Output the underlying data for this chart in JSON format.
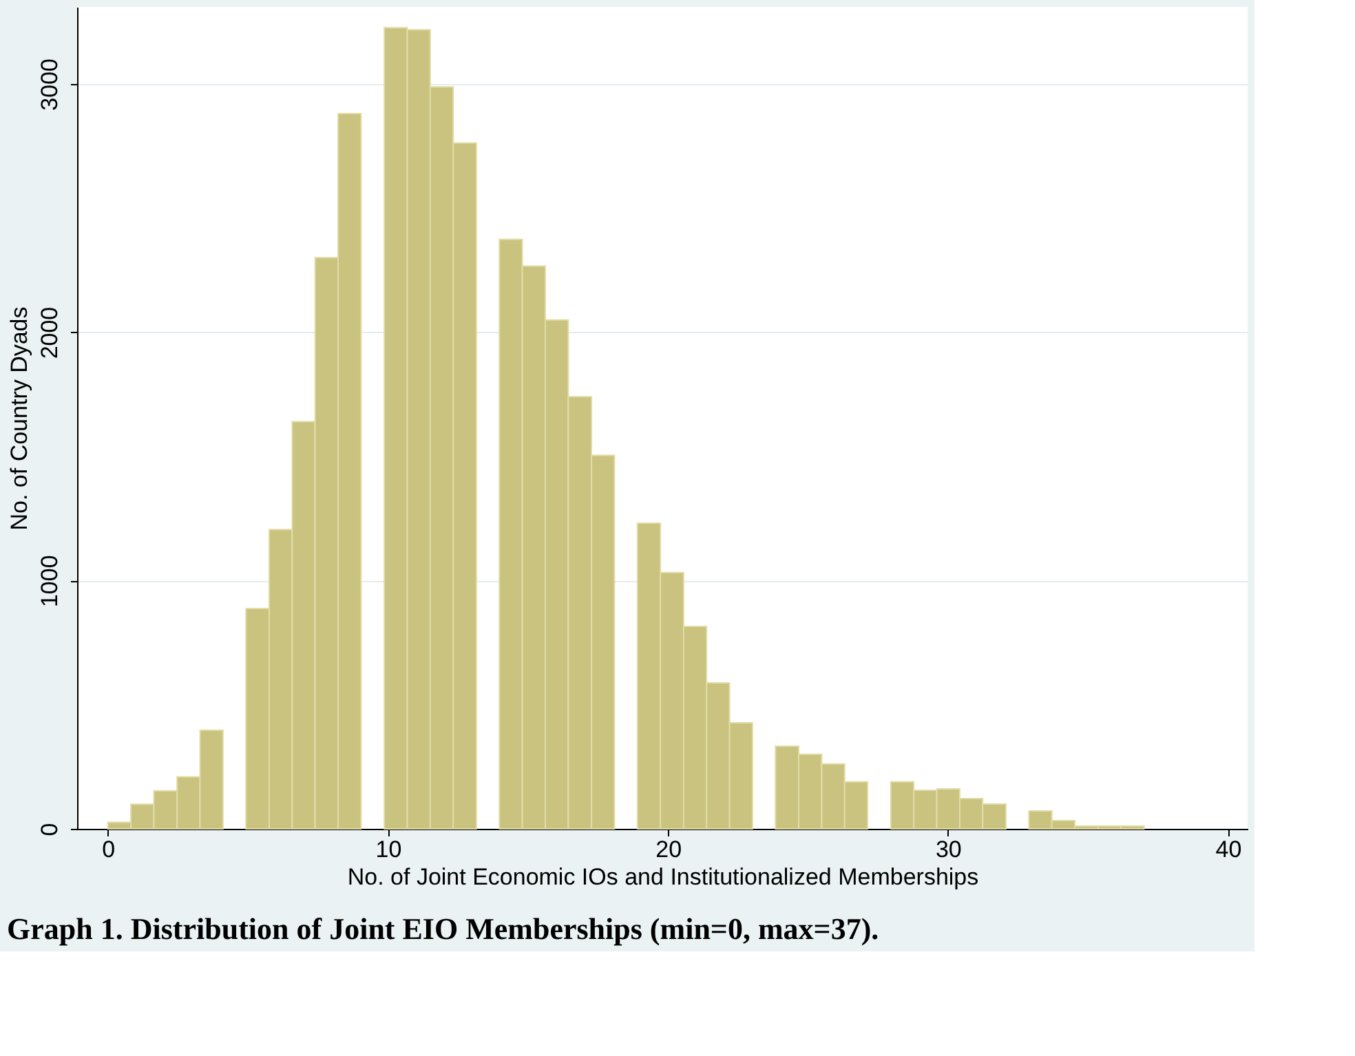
{
  "chart_data": {
    "type": "histogram",
    "title": "Graph 1. Distribution of Joint EIO Memberships (min=0, max=37).",
    "xlabel": "No. of Joint Economic IOs and Institutionalized Memberships",
    "ylabel": "No. of Country Dyads",
    "bins": [
      0,
      0.82,
      1.64,
      2.47,
      3.29,
      4.11,
      4.93,
      5.76,
      6.58,
      7.4,
      8.22,
      9.04,
      9.87,
      10.69,
      11.51,
      12.33,
      13.16,
      13.98,
      14.8,
      15.62,
      16.44,
      17.27,
      18.09,
      18.91,
      19.73,
      20.56,
      21.38,
      22.2,
      23.02,
      23.84,
      24.67,
      25.49,
      26.31,
      27.13,
      27.96,
      28.78,
      29.6,
      30.42,
      31.24,
      32.07,
      32.89,
      33.71,
      34.53,
      35.36,
      36.18,
      37
    ],
    "values": [
      26,
      99,
      153,
      209,
      397,
      0,
      887,
      1205,
      1640,
      2300,
      2880,
      0,
      3226,
      3218,
      2988,
      2762,
      0,
      2374,
      2266,
      2049,
      1740,
      1504,
      0,
      1231,
      1032,
      815,
      588,
      427,
      0,
      333,
      300,
      261,
      189,
      0,
      189,
      155,
      161,
      122,
      100,
      0,
      72,
      33,
      11,
      11,
      11
    ],
    "color": "#c9c37f",
    "xlim": [
      -1.1,
      40.7
    ],
    "xticks": [
      0,
      10,
      20,
      30,
      40
    ],
    "ylim": [
      0,
      3310
    ],
    "yticks": [
      0,
      1000,
      2000,
      3000
    ],
    "grid": "y"
  }
}
